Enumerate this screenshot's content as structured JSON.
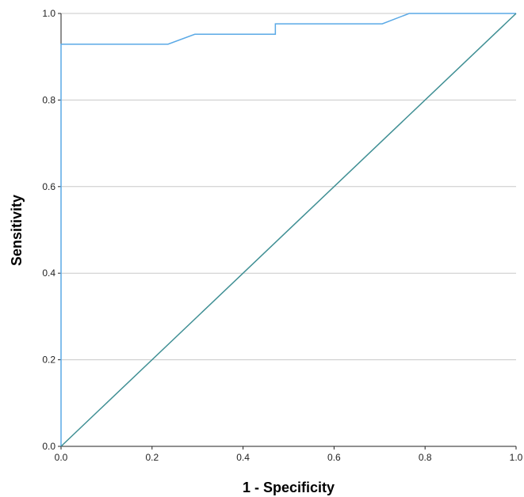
{
  "chart_data": {
    "type": "line",
    "title": "",
    "xlabel": "1 - Specificity",
    "ylabel": "Sensitivity",
    "xlim": [
      0,
      1
    ],
    "ylim": [
      0,
      1
    ],
    "x_ticks": [
      "0.0",
      "0.2",
      "0.4",
      "0.6",
      "0.8",
      "1.0"
    ],
    "y_ticks": [
      "0.0",
      "0.2",
      "0.4",
      "0.6",
      "0.8",
      "1.0"
    ],
    "grid": "horizontal",
    "legend": "none",
    "series": [
      {
        "color": "#5aa9e6",
        "x": [
          0,
          0,
          0.235,
          0.294,
          0.471,
          0.471,
          0.706,
          0.765,
          1.0
        ],
        "y": [
          0,
          0.929,
          0.929,
          0.952,
          0.952,
          0.976,
          0.976,
          1.0,
          1.0
        ]
      },
      {
        "color": "#3f8f94",
        "x": [
          0,
          1
        ],
        "y": [
          0,
          1
        ]
      }
    ]
  }
}
